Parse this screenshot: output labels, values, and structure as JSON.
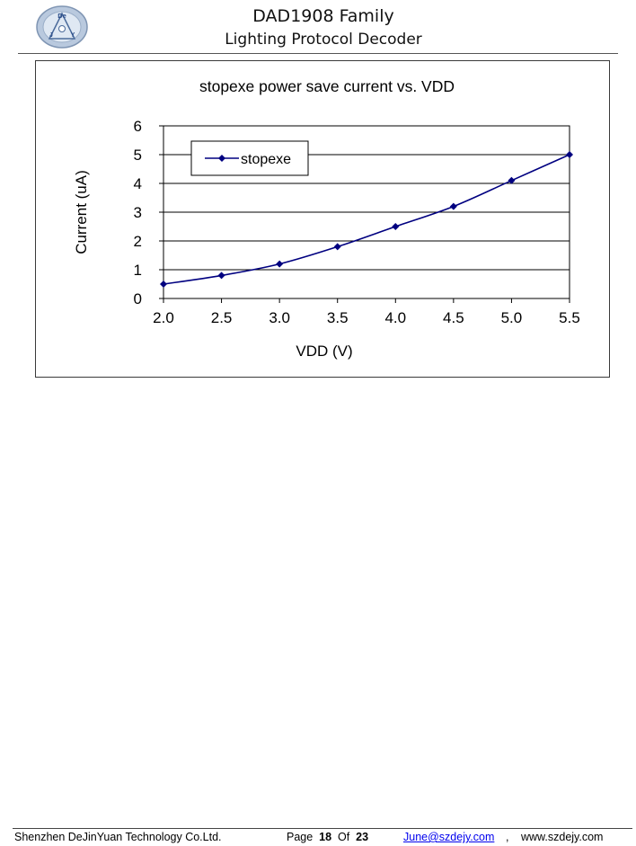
{
  "header": {
    "title": "DAD1908 Family",
    "subtitle": "Lighting Protocol Decoder",
    "logo_letters": [
      "De",
      "J",
      "Y"
    ]
  },
  "chart_data": {
    "type": "line",
    "title": "stopexe power save current vs. VDD",
    "xlabel": "VDD (V)",
    "ylabel": "Current (uA)",
    "x": [
      2.0,
      2.5,
      3.0,
      3.5,
      4.0,
      4.5,
      5.0,
      5.5
    ],
    "x_tick_labels": [
      "2.0",
      "2.5",
      "3.0",
      "3.5",
      "4.0",
      "4.5",
      "5.0",
      "5.5"
    ],
    "y_tick_labels": [
      "0",
      "1",
      "2",
      "3",
      "4",
      "5",
      "6"
    ],
    "xlim": [
      2.0,
      5.5
    ],
    "ylim": [
      0,
      6
    ],
    "grid": "horizontal",
    "legend_position": "top-left",
    "series": [
      {
        "name": "stopexe",
        "values": [
          0.5,
          0.8,
          1.2,
          1.8,
          2.5,
          3.2,
          4.1,
          5.0
        ],
        "color": "#000080",
        "marker": "diamond"
      }
    ]
  },
  "footer": {
    "company": "Shenzhen DeJinYuan Technology Co.Ltd.",
    "page_label": "Page",
    "page_number": "18",
    "of_label": "Of",
    "page_total": "23",
    "email": "June@szdejy.com",
    "email_suffix": ",",
    "website": "www.szdejy.com"
  }
}
